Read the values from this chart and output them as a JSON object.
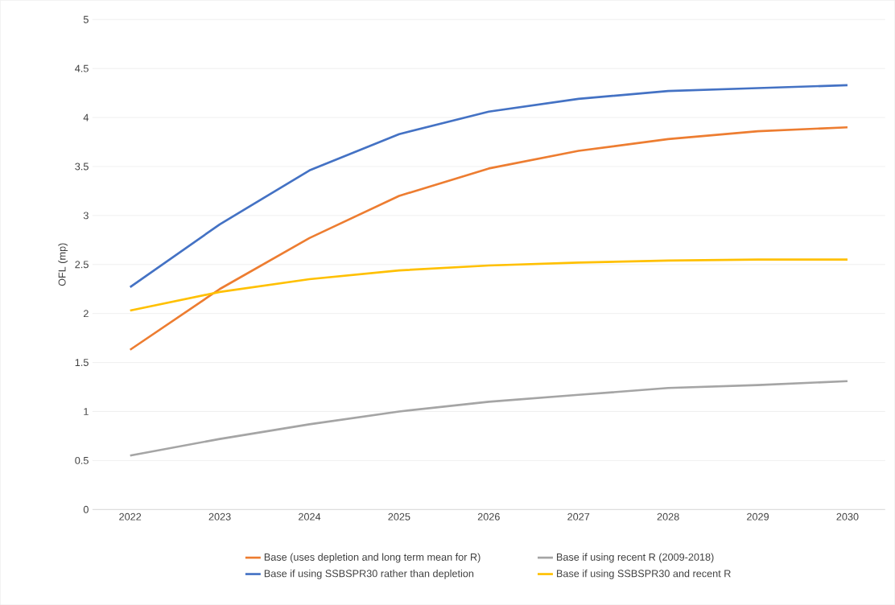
{
  "chart_data": {
    "type": "line",
    "ylabel": "OFL (mp)",
    "categories": [
      "2022",
      "2023",
      "2024",
      "2025",
      "2026",
      "2027",
      "2028",
      "2029",
      "2030"
    ],
    "series": [
      {
        "name": "Base (uses depletion and long term mean for R)",
        "color": "#ed7d31",
        "values": [
          1.63,
          2.25,
          2.77,
          3.2,
          3.48,
          3.66,
          3.78,
          3.86,
          3.9
        ]
      },
      {
        "name": "Base if using recent R (2009-2018)",
        "color": "#a5a5a5",
        "values": [
          0.55,
          0.72,
          0.87,
          1.0,
          1.1,
          1.17,
          1.24,
          1.27,
          1.31
        ]
      },
      {
        "name": "Base if using SSBSPR30 rather than depletion",
        "color": "#4472c4",
        "values": [
          2.27,
          2.91,
          3.46,
          3.83,
          4.06,
          4.19,
          4.27,
          4.3,
          4.33
        ]
      },
      {
        "name": "Base if using SSBSPR30 and recent R",
        "color": "#ffc000",
        "values": [
          2.03,
          2.22,
          2.35,
          2.44,
          2.49,
          2.52,
          2.54,
          2.55,
          2.55
        ]
      }
    ],
    "ylim": [
      0,
      5
    ],
    "yticks": [
      0,
      0.5,
      1,
      1.5,
      2,
      2.5,
      3,
      3.5,
      4,
      4.5,
      5
    ],
    "grid": "y",
    "legend": "bottom",
    "marker": "none",
    "line_style": "solid"
  }
}
